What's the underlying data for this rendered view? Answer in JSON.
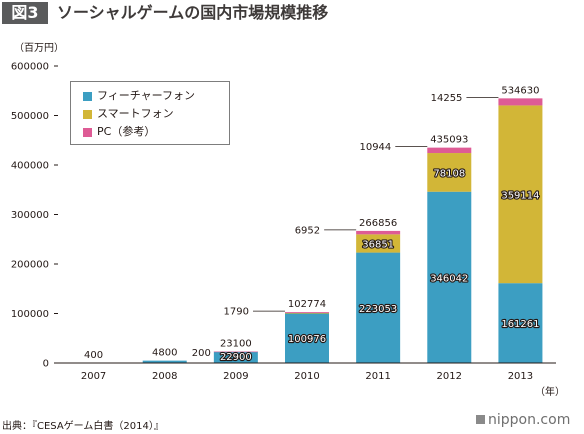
{
  "header": {
    "fig_tag": "図3",
    "title": "ソーシャルゲームの国内市場規模推移"
  },
  "y_unit": "（百万円）",
  "x_unit": "（年）",
  "source": "出典：『CESAゲーム白書（2014）』",
  "brand": "nippon.com",
  "colors": {
    "feature_phone": "#3c9ec2",
    "smartphone": "#d2b637",
    "pc": "#de5b95"
  },
  "chart_data": {
    "type": "bar",
    "stacked": true,
    "title": "ソーシャルゲームの国内市場規模推移",
    "ylabel": "（百万円）",
    "xlabel": "（年）",
    "ylim": [
      0,
      600000
    ],
    "y_ticks": [
      "0",
      "100000",
      "200000",
      "300000",
      "400000",
      "500000",
      "600000"
    ],
    "categories": [
      "2007",
      "2008",
      "2009",
      "2010",
      "2011",
      "2012",
      "2013"
    ],
    "series": [
      {
        "name": "フィーチャーフォン",
        "values": [
          400,
          4800,
          22900,
          100976,
          223053,
          346042,
          161261
        ]
      },
      {
        "name": "スマートフォン",
        "values": [
          0,
          0,
          0,
          8,
          36851,
          78108,
          359114
        ]
      },
      {
        "name": "PC（参考）",
        "values": [
          0,
          0,
          200,
          1790,
          6952,
          10944,
          14255
        ]
      }
    ],
    "totals": [
      400,
      4800,
      23100,
      102774,
      266856,
      435093,
      534630
    ],
    "bar_labels": {
      "feature_phone": [
        "",
        "",
        "22900",
        "100976",
        "223053",
        "346042",
        "161261"
      ],
      "smartphone": [
        "",
        "",
        "",
        "",
        "36851",
        "78108",
        "359114"
      ],
      "pc": [
        "",
        "",
        "200",
        "1790",
        "6952",
        "10944",
        "14255"
      ],
      "total": [
        "400",
        "4800",
        "23100",
        "102774",
        "266856",
        "435093",
        "534630"
      ]
    },
    "legend_position": "top-left",
    "grid": false
  }
}
